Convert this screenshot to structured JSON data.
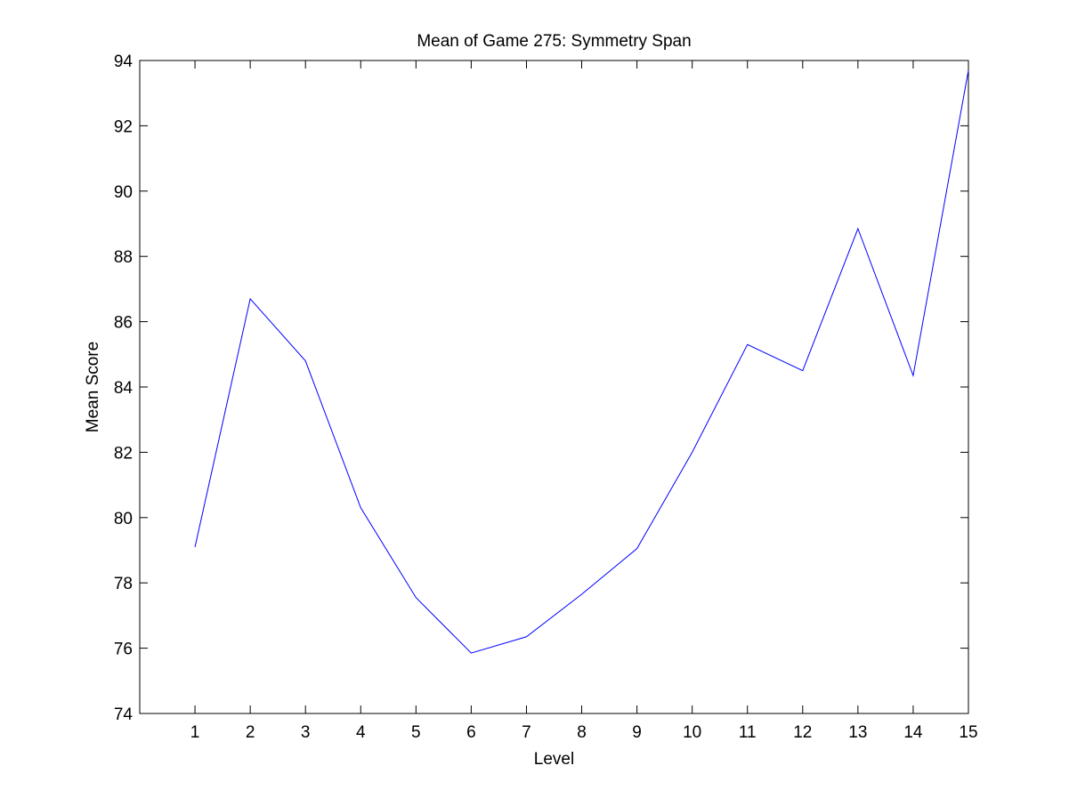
{
  "chart_data": {
    "type": "line",
    "title": "Mean of Game 275: Symmetry Span",
    "xlabel": "Level",
    "ylabel": "Mean Score",
    "x": [
      1,
      2,
      3,
      4,
      5,
      6,
      7,
      8,
      9,
      10,
      11,
      12,
      13,
      14,
      15
    ],
    "series": [
      {
        "values": [
          79.1,
          86.7,
          84.8,
          80.3,
          77.55,
          75.85,
          76.35,
          77.65,
          79.05,
          82.0,
          85.3,
          84.5,
          88.85,
          84.35,
          93.7
        ],
        "color": "#0000ff"
      }
    ],
    "xlim": [
      0,
      15
    ],
    "ylim": [
      74,
      94
    ],
    "xticks": [
      1,
      2,
      3,
      4,
      5,
      6,
      7,
      8,
      9,
      10,
      11,
      12,
      13,
      14,
      15
    ],
    "yticks": [
      74,
      76,
      78,
      80,
      82,
      84,
      86,
      88,
      90,
      92,
      94
    ],
    "grid": false,
    "legend": "none"
  }
}
